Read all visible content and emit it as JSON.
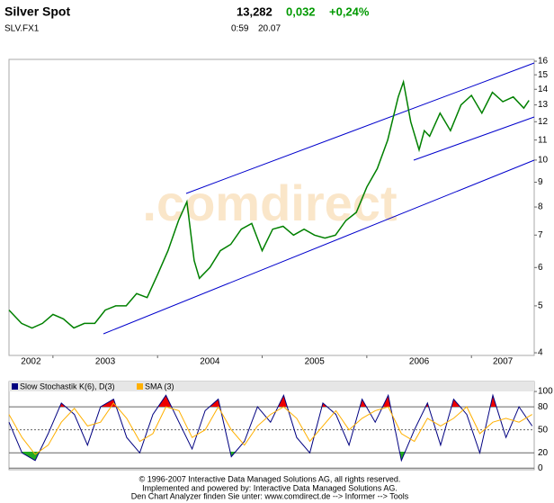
{
  "header": {
    "title": "Silver Spot",
    "symbol": "SLV.FX1",
    "price": "13,282",
    "change": "0,032",
    "change_pct": "+0,24%",
    "time": "0:59",
    "date": "20.07"
  },
  "watermark": ".comdirect",
  "chart_data": [
    {
      "type": "line",
      "log": true,
      "x": [
        2002.58,
        2002.7,
        2002.8,
        2002.9,
        2003.0,
        2003.1,
        2003.2,
        2003.3,
        2003.4,
        2003.5,
        2003.6,
        2003.7,
        2003.8,
        2003.9,
        2004.0,
        2004.1,
        2004.2,
        2004.28,
        2004.35,
        2004.4,
        2004.5,
        2004.6,
        2004.7,
        2004.8,
        2004.9,
        2005.0,
        2005.1,
        2005.2,
        2005.3,
        2005.4,
        2005.5,
        2005.6,
        2005.7,
        2005.8,
        2005.9,
        2006.0,
        2006.1,
        2006.2,
        2006.3,
        2006.35,
        2006.42,
        2006.5,
        2006.55,
        2006.6,
        2006.7,
        2006.8,
        2006.9,
        2007.0,
        2007.1,
        2007.2,
        2007.3,
        2007.4,
        2007.5,
        2007.55
      ],
      "series": [
        {
          "name": "Silver Spot",
          "color": "#008000",
          "values": [
            4.9,
            4.6,
            4.5,
            4.6,
            4.8,
            4.7,
            4.5,
            4.6,
            4.6,
            4.9,
            5.0,
            5.0,
            5.3,
            5.2,
            5.8,
            6.5,
            7.5,
            8.2,
            6.2,
            5.7,
            6.0,
            6.5,
            6.7,
            7.2,
            7.4,
            6.5,
            7.2,
            7.3,
            7.0,
            7.2,
            7.0,
            6.9,
            7.0,
            7.5,
            7.8,
            8.8,
            9.6,
            11.0,
            13.5,
            14.5,
            12.0,
            10.5,
            11.5,
            11.2,
            12.5,
            11.5,
            13.0,
            13.6,
            12.5,
            13.8,
            13.2,
            13.5,
            12.8,
            13.28
          ]
        }
      ],
      "xlim": [
        2002.58,
        2007.6
      ],
      "xticks": [
        2002,
        2003,
        2004,
        2005,
        2006,
        2007
      ],
      "ylim": [
        3.95,
        16.14
      ],
      "yticks": [
        4,
        5,
        6,
        7,
        8,
        9,
        10,
        11,
        12,
        13,
        14,
        15,
        16
      ]
    },
    {
      "type": "line",
      "x": [
        2002.58,
        2002.705,
        2002.83,
        2002.955,
        2003.08,
        2003.205,
        2003.33,
        2003.455,
        2003.58,
        2003.705,
        2003.83,
        2003.955,
        2004.08,
        2004.205,
        2004.33,
        2004.455,
        2004.58,
        2004.705,
        2004.83,
        2004.955,
        2005.08,
        2005.205,
        2005.33,
        2005.455,
        2005.58,
        2005.705,
        2005.83,
        2005.955,
        2006.08,
        2006.205,
        2006.33,
        2006.455,
        2006.58,
        2006.705,
        2006.83,
        2006.955,
        2007.08,
        2007.205,
        2007.33,
        2007.455,
        2007.58
      ],
      "series": [
        {
          "name": "Slow Stochastik K(6), D(3)",
          "color": "#000080",
          "values": [
            60,
            20,
            10,
            45,
            85,
            70,
            30,
            80,
            90,
            40,
            20,
            70,
            95,
            60,
            25,
            75,
            90,
            15,
            35,
            80,
            60,
            95,
            40,
            20,
            85,
            70,
            30,
            90,
            60,
            95,
            10,
            50,
            85,
            30,
            90,
            70,
            20,
            95,
            40,
            80,
            55
          ]
        },
        {
          "name": "SMA (3)",
          "color": "#ffb000",
          "values": [
            70,
            40,
            18,
            30,
            60,
            78,
            55,
            60,
            85,
            65,
            35,
            45,
            80,
            75,
            40,
            50,
            80,
            50,
            30,
            55,
            70,
            80,
            65,
            35,
            55,
            75,
            50,
            65,
            75,
            80,
            45,
            35,
            65,
            55,
            65,
            80,
            45,
            60,
            65,
            60,
            70
          ]
        }
      ],
      "xlim": [
        2002.58,
        2007.6
      ],
      "ylim": [
        -2,
        113
      ],
      "yticks": [
        0,
        20,
        50,
        80,
        100
      ]
    }
  ],
  "footer": [
    "© 1996-2007 Interactive Data Managed Solutions AG, all rights reserved.",
    "Implemented and powered by: Interactive Data Managed Solutions AG.",
    "Den Chart Analyzer finden Sie unter: www.comdirect.de --> Informer --> Tools"
  ]
}
